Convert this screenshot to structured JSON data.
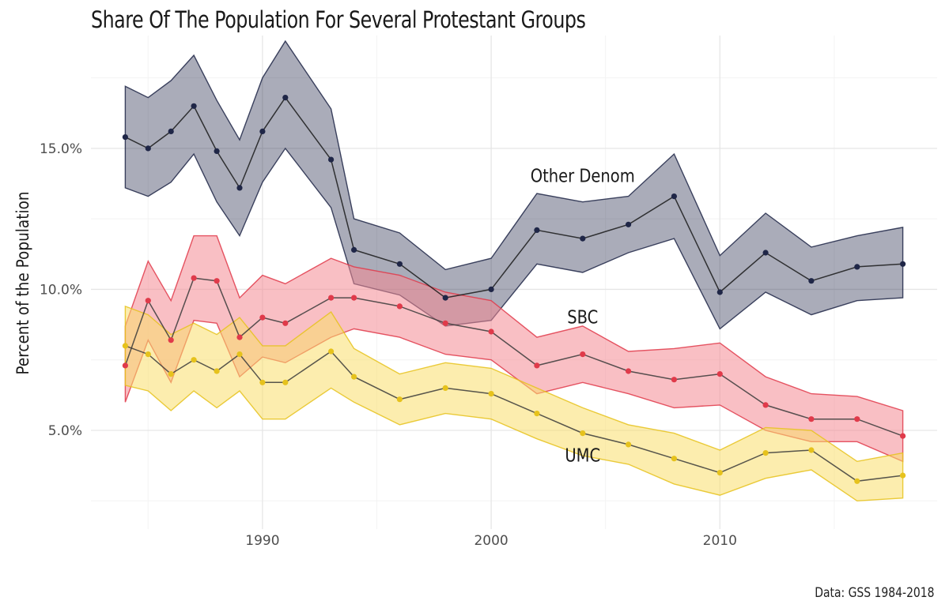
{
  "title": "Share Of The Population For Several Protestant Groups",
  "caption": "Data: GSS 1984-2018",
  "chart_data": {
    "type": "line",
    "title": "Share Of The Population For Several Protestant Groups",
    "xlabel": "",
    "ylabel": "Percent of the Population",
    "xlim": [
      1982.5,
      2019.5
    ],
    "ylim": [
      1.5,
      19.0
    ],
    "x_ticks": [
      1990,
      2000,
      2010
    ],
    "y_ticks": [
      5.0,
      10.0,
      15.0
    ],
    "y_tick_labels": [
      "5.0%",
      "10.0%",
      "15.0%"
    ],
    "grid": true,
    "legend": "none",
    "series": [
      {
        "name": "Other Denom",
        "color": "#1f2647",
        "fill": "#1f2647",
        "label_year": 2004,
        "label_y": 13.8,
        "x": [
          1984,
          1985,
          1986,
          1987,
          1988,
          1989,
          1990,
          1991,
          1993,
          1994,
          1996,
          1998,
          2000,
          2002,
          2004,
          2006,
          2008,
          2010,
          2012,
          2014,
          2016,
          2018
        ],
        "y": [
          15.4,
          15.0,
          15.6,
          16.5,
          14.9,
          13.6,
          15.6,
          16.8,
          14.6,
          11.4,
          10.9,
          9.7,
          10.0,
          12.1,
          11.8,
          12.3,
          13.3,
          9.9,
          11.3,
          10.3,
          10.8,
          10.9
        ],
        "lower": [
          13.6,
          13.3,
          13.8,
          14.8,
          13.1,
          11.9,
          13.8,
          15.0,
          12.9,
          10.2,
          9.8,
          8.7,
          8.9,
          10.9,
          10.6,
          11.3,
          11.8,
          8.6,
          9.9,
          9.1,
          9.6,
          9.7
        ],
        "upper": [
          17.2,
          16.8,
          17.4,
          18.3,
          16.7,
          15.3,
          17.5,
          18.8,
          16.4,
          12.5,
          12.0,
          10.7,
          11.1,
          13.4,
          13.1,
          13.3,
          14.8,
          11.2,
          12.7,
          11.5,
          11.9,
          12.2
        ]
      },
      {
        "name": "SBC",
        "color": "#e03a4a",
        "fill": "#f48b93",
        "label_year": 2004,
        "label_y": 8.8,
        "x": [
          1984,
          1985,
          1986,
          1987,
          1988,
          1989,
          1990,
          1991,
          1993,
          1994,
          1996,
          1998,
          2000,
          2002,
          2004,
          2006,
          2008,
          2010,
          2012,
          2014,
          2016,
          2018
        ],
        "y": [
          7.3,
          9.6,
          8.2,
          10.4,
          10.3,
          8.3,
          9.0,
          8.8,
          9.7,
          9.7,
          9.4,
          8.8,
          8.5,
          7.3,
          7.7,
          7.1,
          6.8,
          7.0,
          5.9,
          5.4,
          5.4,
          4.8
        ],
        "lower": [
          6.0,
          8.2,
          6.7,
          8.9,
          8.8,
          6.9,
          7.6,
          7.4,
          8.3,
          8.6,
          8.3,
          7.7,
          7.5,
          6.3,
          6.7,
          6.3,
          5.8,
          5.9,
          5.0,
          4.6,
          4.6,
          3.9
        ],
        "upper": [
          8.7,
          11.0,
          9.6,
          11.9,
          11.9,
          9.7,
          10.5,
          10.2,
          11.1,
          10.8,
          10.5,
          9.9,
          9.6,
          8.3,
          8.7,
          7.8,
          7.9,
          8.1,
          6.9,
          6.3,
          6.2,
          5.7
        ]
      },
      {
        "name": "UMC",
        "color": "#e6c21c",
        "fill": "#f9df6b",
        "label_year": 2004,
        "label_y": 3.9,
        "x": [
          1984,
          1985,
          1986,
          1987,
          1988,
          1989,
          1990,
          1991,
          1993,
          1994,
          1996,
          1998,
          2000,
          2002,
          2004,
          2006,
          2008,
          2010,
          2012,
          2014,
          2016,
          2018
        ],
        "y": [
          8.0,
          7.7,
          7.0,
          7.5,
          7.1,
          7.7,
          6.7,
          6.7,
          7.8,
          6.9,
          6.1,
          6.5,
          6.3,
          5.6,
          4.9,
          4.5,
          4.0,
          3.5,
          4.2,
          4.3,
          3.2,
          3.4
        ],
        "lower": [
          6.6,
          6.4,
          5.7,
          6.4,
          5.8,
          6.4,
          5.4,
          5.4,
          6.5,
          6.0,
          5.2,
          5.6,
          5.4,
          4.7,
          4.1,
          3.8,
          3.1,
          2.7,
          3.3,
          3.6,
          2.5,
          2.6
        ],
        "upper": [
          9.4,
          9.1,
          8.4,
          8.8,
          8.4,
          9.0,
          8.0,
          8.0,
          9.2,
          7.9,
          7.0,
          7.4,
          7.2,
          6.5,
          5.8,
          5.2,
          4.9,
          4.3,
          5.1,
          5.0,
          3.9,
          4.2
        ]
      }
    ]
  }
}
